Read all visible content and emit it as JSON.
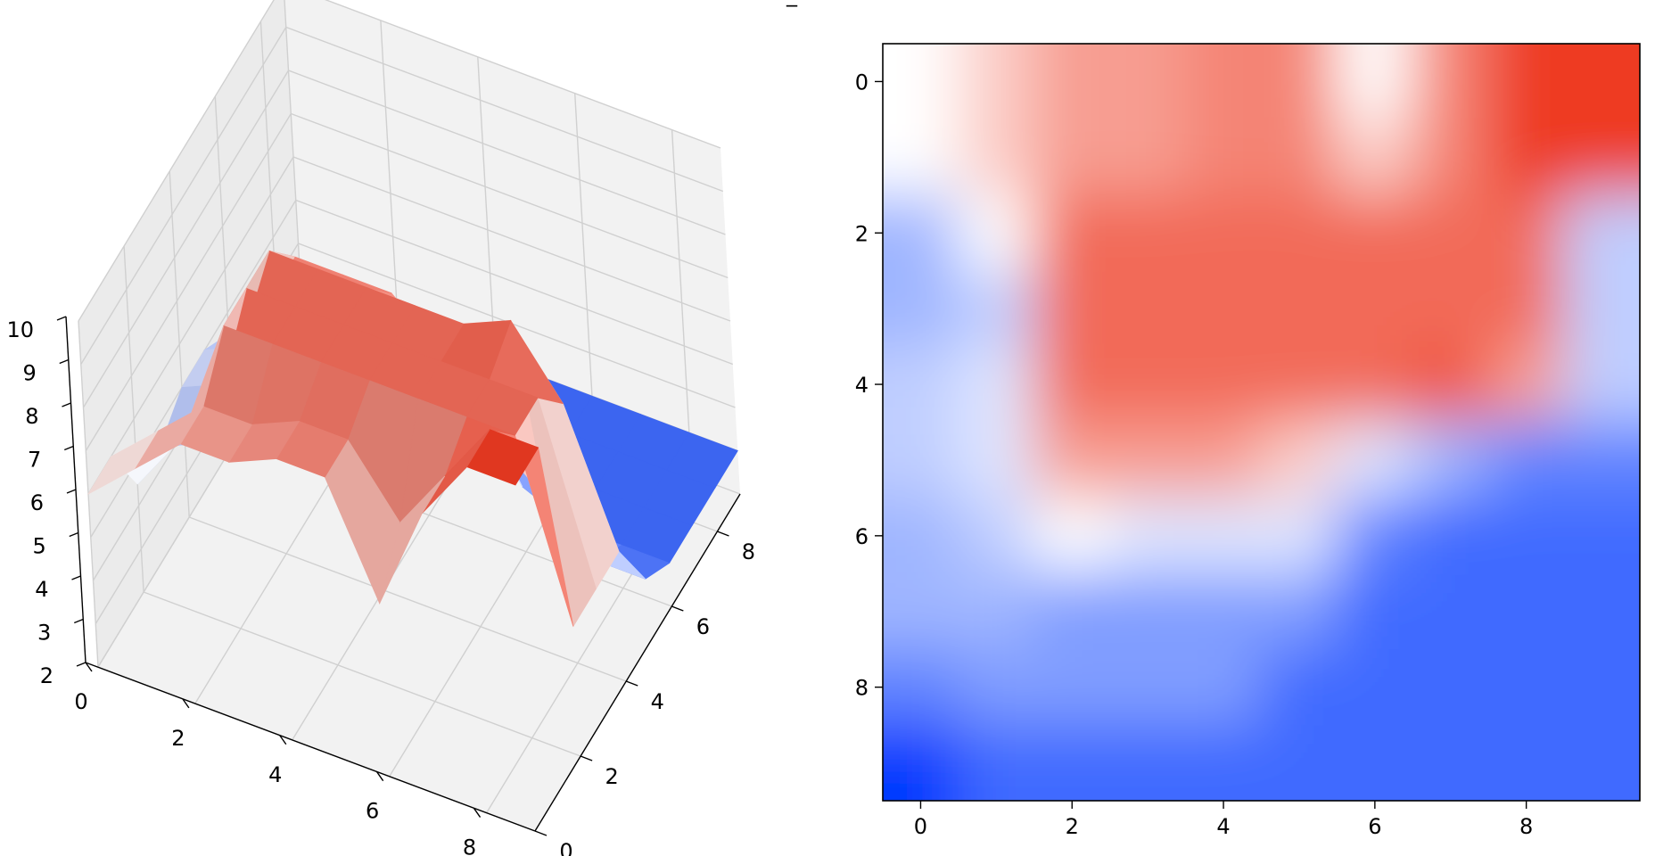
{
  "title": "_",
  "chart_data": [
    {
      "type": "surface3d",
      "title": "",
      "xlabel": "",
      "ylabel": "",
      "zlabel": "",
      "x_ticks": [
        "0",
        "2",
        "4",
        "6",
        "8"
      ],
      "y_ticks": [
        "0",
        "2",
        "4",
        "6",
        "8"
      ],
      "z_ticks": [
        "2",
        "3",
        "4",
        "5",
        "6",
        "7",
        "8",
        "9",
        "10"
      ],
      "zlim": [
        2,
        10
      ],
      "colormap": "bwr",
      "colormap_range": [
        2,
        10
      ],
      "z": [
        [
          6.0,
          7.0,
          8.0,
          8.0,
          8.5,
          8.5,
          6.0,
          8.5,
          10.0,
          10.0
        ],
        [
          6.0,
          7.0,
          8.0,
          8.0,
          8.5,
          8.5,
          7.0,
          8.5,
          10.0,
          10.0
        ],
        [
          4.5,
          6.0,
          9.0,
          9.0,
          9.0,
          9.0,
          9.0,
          9.0,
          9.0,
          5.0
        ],
        [
          4.5,
          5.0,
          9.0,
          9.0,
          9.0,
          9.0,
          9.0,
          9.0,
          9.0,
          5.0
        ],
        [
          5.0,
          5.5,
          9.0,
          9.0,
          9.0,
          9.0,
          9.0,
          9.5,
          8.0,
          5.0
        ],
        [
          5.0,
          5.5,
          8.0,
          8.0,
          8.0,
          7.0,
          5.5,
          4.5,
          3.5,
          3.5
        ],
        [
          4.5,
          5.0,
          6.0,
          5.5,
          5.5,
          5.5,
          3.5,
          3.0,
          3.0,
          3.0
        ],
        [
          4.5,
          4.5,
          4.0,
          4.0,
          4.0,
          4.0,
          3.0,
          3.0,
          3.0,
          3.0
        ],
        [
          3.5,
          4.0,
          4.0,
          4.0,
          4.0,
          3.0,
          3.0,
          3.0,
          3.0,
          3.0
        ],
        [
          2.0,
          3.0,
          3.0,
          3.0,
          3.0,
          3.0,
          3.0,
          3.0,
          3.0,
          3.0
        ]
      ]
    },
    {
      "type": "heatmap",
      "title": "",
      "xlabel": "",
      "ylabel": "",
      "x_ticks": [
        "0",
        "2",
        "4",
        "6",
        "8"
      ],
      "y_ticks": [
        "0",
        "2",
        "4",
        "6",
        "8"
      ],
      "xlim": [
        -0.5,
        9.5
      ],
      "ylim": [
        9.5,
        -0.5
      ],
      "interpolation": "smooth",
      "colormap": "bwr"
    }
  ]
}
